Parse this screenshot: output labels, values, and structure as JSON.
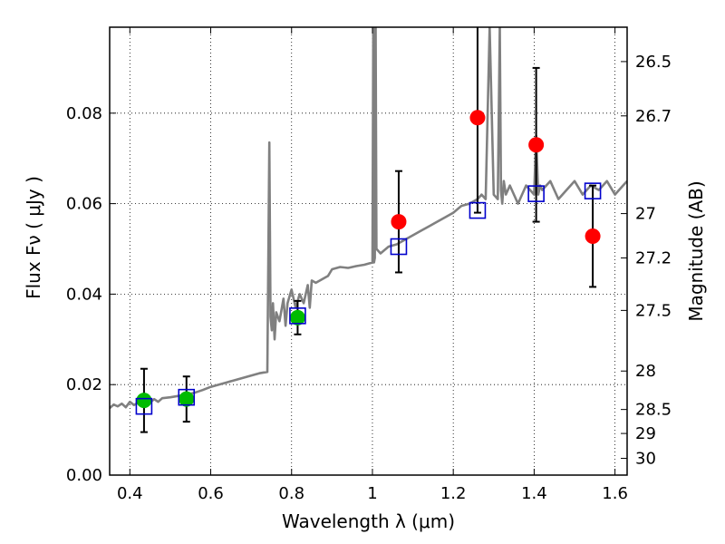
{
  "chart_data": {
    "type": "scatter",
    "xlabel": "Wavelength  λ (μm)",
    "ylabel": "Flux  Fν  ( μJy )",
    "ylabel_right": "Magnitude (AB)",
    "xlim": [
      0.35,
      1.63
    ],
    "ylim": [
      0.0,
      0.099
    ],
    "grid": true,
    "x_ticks": [
      0.4,
      0.6,
      0.8,
      1.0,
      1.2,
      1.4,
      1.6
    ],
    "x_tick_labels": [
      "0.4",
      "0.6",
      "0.8",
      "1",
      "1.2",
      "1.4",
      "1.6"
    ],
    "y_ticks": [
      0.0,
      0.02,
      0.04,
      0.06,
      0.08
    ],
    "y_tick_labels": [
      "0.00",
      "0.02",
      "0.04",
      "0.06",
      "0.08"
    ],
    "mag_ticks": [
      {
        "label": "26.5",
        "flux": 0.0914
      },
      {
        "label": "26.7",
        "flux": 0.0794
      },
      {
        "label": "27",
        "flux": 0.0578
      },
      {
        "label": "27.2",
        "flux": 0.048
      },
      {
        "label": "27.5",
        "flux": 0.0364
      },
      {
        "label": "28",
        "flux": 0.023
      },
      {
        "label": "28.5",
        "flux": 0.0145
      },
      {
        "label": "29",
        "flux": 0.0092
      },
      {
        "label": "30",
        "flux": 0.0037
      }
    ],
    "series": [
      {
        "kind": "line",
        "color": "#808080",
        "x": [
          0.35,
          0.36,
          0.37,
          0.38,
          0.39,
          0.4,
          0.41,
          0.42,
          0.43,
          0.44,
          0.45,
          0.46,
          0.47,
          0.48,
          0.5,
          0.52,
          0.54,
          0.56,
          0.58,
          0.6,
          0.62,
          0.64,
          0.66,
          0.68,
          0.7,
          0.72,
          0.74,
          0.745,
          0.748,
          0.751,
          0.754,
          0.758,
          0.762,
          0.77,
          0.78,
          0.785,
          0.79,
          0.8,
          0.81,
          0.82,
          0.83,
          0.84,
          0.845,
          0.85,
          0.86,
          0.87,
          0.88,
          0.89,
          0.9,
          0.92,
          0.94,
          0.96,
          0.98,
          1.0,
          1.002,
          1.004,
          1.006,
          1.008,
          1.01,
          1.02,
          1.04,
          1.06,
          1.08,
          1.1,
          1.12,
          1.14,
          1.16,
          1.18,
          1.2,
          1.22,
          1.24,
          1.26,
          1.27,
          1.28,
          1.29,
          1.3,
          1.31,
          1.315,
          1.318,
          1.321,
          1.325,
          1.33,
          1.34,
          1.36,
          1.38,
          1.4,
          1.405,
          1.41,
          1.415,
          1.42,
          1.44,
          1.46,
          1.48,
          1.5,
          1.52,
          1.54,
          1.56,
          1.58,
          1.6,
          1.62,
          1.63
        ],
        "y": [
          0.0148,
          0.0156,
          0.0152,
          0.0158,
          0.015,
          0.0162,
          0.0155,
          0.016,
          0.0158,
          0.0165,
          0.016,
          0.0168,
          0.0162,
          0.017,
          0.0172,
          0.0175,
          0.0178,
          0.0182,
          0.0188,
          0.0195,
          0.02,
          0.0205,
          0.021,
          0.0215,
          0.022,
          0.0225,
          0.0228,
          0.0735,
          0.035,
          0.032,
          0.038,
          0.03,
          0.036,
          0.034,
          0.039,
          0.033,
          0.038,
          0.041,
          0.037,
          0.04,
          0.038,
          0.042,
          0.037,
          0.043,
          0.0425,
          0.043,
          0.0435,
          0.044,
          0.0455,
          0.046,
          0.0458,
          0.0462,
          0.0465,
          0.047,
          0.099,
          0.047,
          0.048,
          0.099,
          0.05,
          0.049,
          0.0505,
          0.051,
          0.052,
          0.053,
          0.054,
          0.055,
          0.056,
          0.057,
          0.058,
          0.0595,
          0.06,
          0.061,
          0.062,
          0.061,
          0.099,
          0.062,
          0.061,
          0.099,
          0.063,
          0.06,
          0.065,
          0.062,
          0.064,
          0.06,
          0.064,
          0.062,
          0.075,
          0.062,
          0.064,
          0.063,
          0.065,
          0.061,
          0.063,
          0.065,
          0.062,
          0.064,
          0.063,
          0.065,
          0.062,
          0.064,
          0.065
        ]
      },
      {
        "kind": "points",
        "marker": "circle",
        "color": "#00bb00",
        "x": [
          0.435,
          0.54,
          0.815
        ],
        "y": [
          0.0165,
          0.0168,
          0.0348
        ],
        "yerr": [
          0.007,
          0.005,
          0.0037
        ]
      },
      {
        "kind": "points",
        "marker": "circle",
        "color": "#ff0000",
        "x": [
          1.065,
          1.26,
          1.405,
          1.545
        ],
        "y": [
          0.056,
          0.079,
          0.073,
          0.0528
        ],
        "yerr": [
          0.0112,
          0.021,
          0.017,
          0.0112
        ]
      },
      {
        "kind": "points",
        "marker": "square-open",
        "color": "#0000cc",
        "x": [
          0.435,
          0.54,
          0.815,
          1.065,
          1.26,
          1.405,
          1.545
        ],
        "y": [
          0.0152,
          0.0172,
          0.0352,
          0.0505,
          0.0585,
          0.0622,
          0.0628
        ]
      }
    ]
  }
}
